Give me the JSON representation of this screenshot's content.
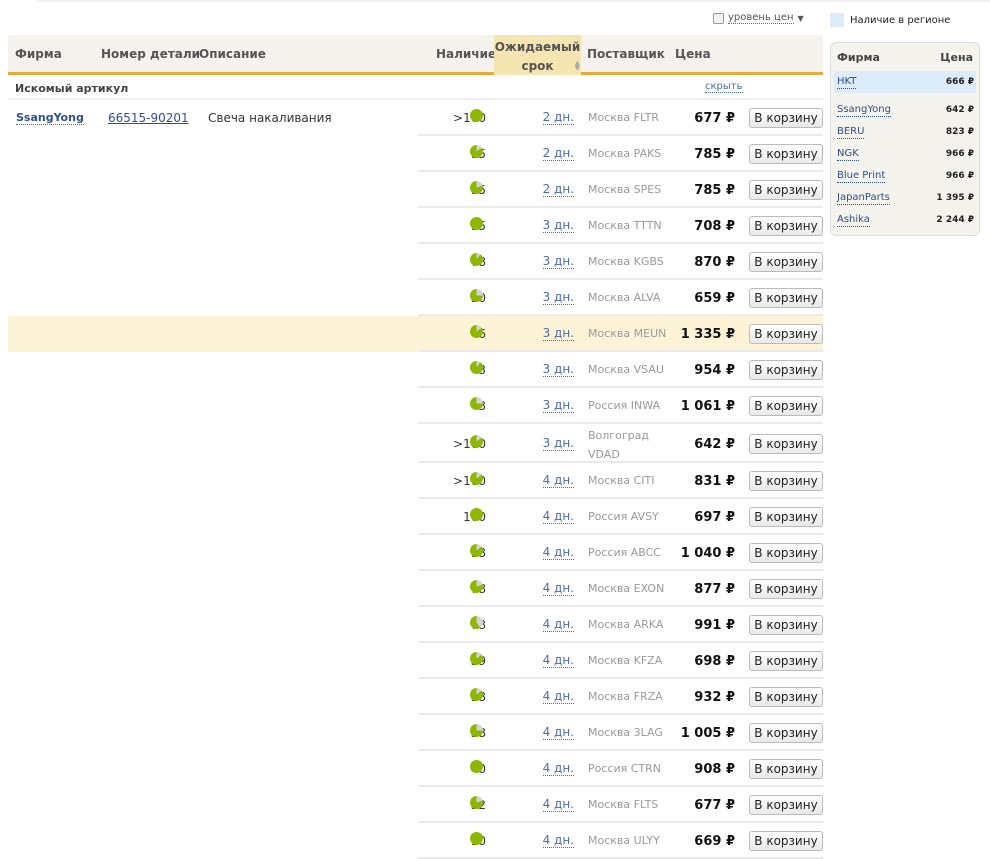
{
  "filter": {
    "label": "уровень цен"
  },
  "legend": {
    "label": "Наличие в регионе",
    "color": "#dcecfa"
  },
  "headers": {
    "firm": "Фирма",
    "part_number": "Номер детали",
    "description": "Описание",
    "availability": "Наличие",
    "expected_line1": "Ожидаемый",
    "expected_line2": "срок",
    "supplier": "Поставщик",
    "price": "Цена"
  },
  "section": {
    "title": "Искомый артикул",
    "hide": "скрыть"
  },
  "article": {
    "firm": "SsangYong",
    "part_number": "66515-90201",
    "description": "Свеча накаливания"
  },
  "button_label": "В корзину",
  "colors": {
    "accent": "#e8a93a",
    "pie": "#8cb800",
    "highlight": "#fdf4d7"
  },
  "rows": [
    {
      "avail": ">100",
      "rel": 1,
      "days": "2 дн.",
      "supplier": "Москва FLTR",
      "price": "677 ₽"
    },
    {
      "avail": "95",
      "rel": 0.85,
      "days": "2 дн.",
      "supplier": "Москва PAKS",
      "price": "785 ₽"
    },
    {
      "avail": "95",
      "rel": 0.8,
      "days": "2 дн.",
      "supplier": "Москва SPES",
      "price": "785 ₽"
    },
    {
      "avail": "95",
      "rel": 1,
      "days": "3 дн.",
      "supplier": "Москва TTTN",
      "price": "708 ₽"
    },
    {
      "avail": "78",
      "rel": 0.9,
      "days": "3 дн.",
      "supplier": "Москва KGBS",
      "price": "870 ₽"
    },
    {
      "avail": "50",
      "rel": 0.75,
      "days": "3 дн.",
      "supplier": "Москва ALVA",
      "price": "659 ₽"
    },
    {
      "avail": "6",
      "rel": 0.85,
      "days": "3 дн.",
      "supplier": "Москва MEUN",
      "price": "1 335 ₽",
      "highlight": true
    },
    {
      "avail": "3",
      "rel": 0.9,
      "days": "3 дн.",
      "supplier": "Москва VSAU",
      "price": "954 ₽"
    },
    {
      "avail": "3",
      "rel": 0.75,
      "days": "3 дн.",
      "supplier": "Россия INWA",
      "price": "1 061 ₽"
    },
    {
      "avail": ">100",
      "rel": 0.85,
      "days": "3 дн.",
      "supplier": "Волгоград VDAD",
      "price": "642 ₽",
      "two": true
    },
    {
      "avail": ">100",
      "rel": 0.85,
      "days": "4 дн.",
      "supplier": "Москва CITI",
      "price": "831 ₽"
    },
    {
      "avail": "100",
      "rel": 1,
      "days": "4 дн.",
      "supplier": "Россия AVSY",
      "price": "697 ₽"
    },
    {
      "avail": "98",
      "rel": 0.85,
      "days": "4 дн.",
      "supplier": "Россия ABCC",
      "price": "1 040 ₽"
    },
    {
      "avail": "78",
      "rel": 0.8,
      "days": "4 дн.",
      "supplier": "Москва EXON",
      "price": "877 ₽"
    },
    {
      "avail": "78",
      "rel": 0.6,
      "days": "4 дн.",
      "supplier": "Москва ARKA",
      "price": "991 ₽"
    },
    {
      "avail": "59",
      "rel": 0.85,
      "days": "4 дн.",
      "supplier": "Москва KFZA",
      "price": "698 ₽"
    },
    {
      "avail": "58",
      "rel": 0.85,
      "days": "4 дн.",
      "supplier": "Москва FRZA",
      "price": "932 ₽"
    },
    {
      "avail": "58",
      "rel": 0.75,
      "days": "4 дн.",
      "supplier": "Москва 3LAG",
      "price": "1 005 ₽"
    },
    {
      "avail": "40",
      "rel": 1,
      "days": "4 дн.",
      "supplier": "Россия CTRN",
      "price": "908 ₽"
    },
    {
      "avail": "32",
      "rel": 0.8,
      "days": "4 дн.",
      "supplier": "Москва FLTS",
      "price": "677 ₽"
    },
    {
      "avail": "10",
      "rel": 1,
      "days": "4 дн.",
      "supplier": "Москва ULYY",
      "price": "669 ₽"
    }
  ],
  "panel": {
    "firm_header": "Фирма",
    "price_header": "Цена",
    "regional": {
      "firm": "HKT",
      "price": "666 ₽"
    },
    "items": [
      {
        "firm": "SsangYong",
        "price": "642 ₽"
      },
      {
        "firm": "BERU",
        "price": "823 ₽"
      },
      {
        "firm": "NGK",
        "price": "966 ₽"
      },
      {
        "firm": "Blue Print",
        "price": "966 ₽"
      },
      {
        "firm": "JapanParts",
        "price": "1 395 ₽"
      },
      {
        "firm": "Ashika",
        "price": "2 244 ₽"
      }
    ]
  }
}
